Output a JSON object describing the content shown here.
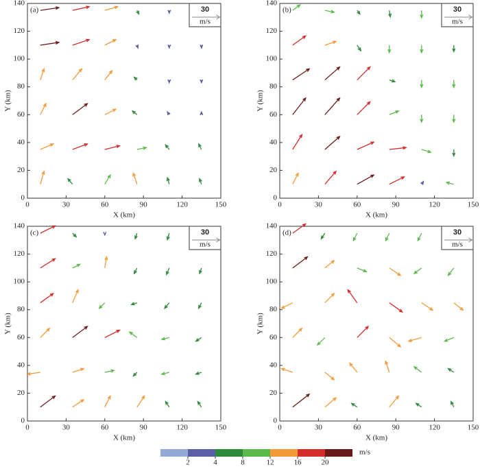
{
  "chart_data": [
    {
      "type": "quiver",
      "panel_label": "(a)",
      "xlabel": "X (km)",
      "ylabel": "Y (km)",
      "xlim": [
        0,
        150
      ],
      "xticks": [
        0,
        30,
        60,
        90,
        120,
        150
      ],
      "ylim": [
        0,
        140
      ],
      "yticks": [
        0,
        20,
        40,
        60,
        80,
        100,
        120,
        140
      ],
      "ref_value": 30,
      "ref_unit": "m/s",
      "grid_x": [
        10,
        35,
        60,
        85,
        110,
        135
      ],
      "grid_y": [
        10,
        35,
        60,
        85,
        110,
        135
      ],
      "u": [
        [
          4,
          -5,
          6,
          -4,
          -2,
          -2
        ],
        [
          14,
          16,
          16,
          10,
          -4,
          -3
        ],
        [
          6,
          16,
          12,
          -5,
          -2,
          0
        ],
        [
          4,
          10,
          8,
          -3,
          0,
          0
        ],
        [
          20,
          18,
          12,
          1,
          0,
          0
        ],
        [
          20,
          18,
          14,
          2,
          0,
          0
        ]
      ],
      "v": [
        [
          14,
          6,
          10,
          12,
          7,
          6
        ],
        [
          6,
          6,
          4,
          2,
          5,
          6
        ],
        [
          12,
          12,
          6,
          4,
          3,
          3
        ],
        [
          12,
          12,
          10,
          3,
          -3,
          -3
        ],
        [
          3,
          6,
          6,
          -3,
          -3,
          -3
        ],
        [
          3,
          4,
          4,
          -4,
          -3,
          -3
        ]
      ]
    },
    {
      "type": "quiver",
      "panel_label": "(b)",
      "xlabel": "X (km)",
      "ylabel": "Y (km)",
      "xlim": [
        0,
        150
      ],
      "xticks": [
        0,
        30,
        60,
        90,
        120,
        150
      ],
      "ylim": [
        0,
        140
      ],
      "yticks": [
        0,
        20,
        40,
        60,
        80,
        100,
        120,
        140
      ],
      "ref_value": 30,
      "ref_unit": "m/s",
      "grid_x": [
        10,
        35,
        60,
        85,
        110,
        135
      ],
      "grid_y": [
        10,
        35,
        60,
        85,
        110,
        135
      ],
      "u": [
        [
          6,
          12,
          18,
          16,
          2,
          -8
        ],
        [
          10,
          16,
          18,
          18,
          10,
          0
        ],
        [
          14,
          16,
          14,
          10,
          0,
          0
        ],
        [
          18,
          16,
          14,
          6,
          0,
          0
        ],
        [
          14,
          12,
          4,
          0,
          0,
          0
        ],
        [
          8,
          10,
          3,
          1,
          0,
          0
        ]
      ],
      "v": [
        [
          12,
          14,
          10,
          8,
          3,
          2
        ],
        [
          16,
          14,
          8,
          2,
          -3,
          -7
        ],
        [
          18,
          18,
          14,
          4,
          -8,
          -8
        ],
        [
          12,
          14,
          14,
          -2,
          -8,
          -8
        ],
        [
          10,
          4,
          -6,
          -8,
          -8,
          -7
        ],
        [
          6,
          -2,
          -4,
          -7,
          -8,
          -6
        ]
      ]
    },
    {
      "type": "quiver",
      "panel_label": "(c)",
      "xlabel": "X (km)",
      "ylabel": "Y (km)",
      "xlim": [
        0,
        150
      ],
      "xticks": [
        0,
        30,
        60,
        90,
        120,
        150
      ],
      "ylim": [
        0,
        140
      ],
      "yticks": [
        0,
        20,
        40,
        60,
        80,
        100,
        120,
        140
      ],
      "ref_value": 30,
      "ref_unit": "m/s",
      "grid_x": [
        10,
        35,
        60,
        85,
        110,
        135
      ],
      "grid_y": [
        10,
        35,
        60,
        85,
        110,
        135
      ],
      "u": [
        [
          16,
          12,
          6,
          8,
          -4,
          -4
        ],
        [
          -14,
          12,
          10,
          -4,
          -8,
          -6
        ],
        [
          10,
          16,
          16,
          -8,
          -8,
          -6
        ],
        [
          14,
          6,
          -6,
          -6,
          -5,
          -3
        ],
        [
          16,
          8,
          2,
          -3,
          -3,
          -2
        ],
        [
          16,
          4,
          0,
          -2,
          -2,
          -2
        ]
      ],
      "v": [
        [
          12,
          8,
          12,
          12,
          6,
          6
        ],
        [
          -2,
          4,
          2,
          -4,
          -2,
          -2
        ],
        [
          10,
          12,
          8,
          6,
          -2,
          -4
        ],
        [
          10,
          14,
          -6,
          -2,
          -6,
          -6
        ],
        [
          10,
          4,
          12,
          -6,
          -7,
          -6
        ],
        [
          8,
          -4,
          -2,
          -6,
          -7,
          -6
        ]
      ]
    },
    {
      "type": "quiver",
      "panel_label": "(d)",
      "xlabel": "X (km)",
      "ylabel": "Y (km)",
      "xlim": [
        0,
        150
      ],
      "xticks": [
        0,
        30,
        60,
        90,
        120,
        150
      ],
      "ylim": [
        0,
        140
      ],
      "yticks": [
        0,
        20,
        40,
        60,
        80,
        100,
        120,
        140
      ],
      "ref_value": 30,
      "ref_unit": "m/s",
      "grid_x": [
        10,
        35,
        60,
        85,
        110,
        135
      ],
      "grid_y": [
        10,
        35,
        60,
        85,
        110,
        135
      ],
      "u": [
        [
          18,
          12,
          -6,
          10,
          -6,
          -3
        ],
        [
          -12,
          10,
          -8,
          -4,
          -8,
          -6
        ],
        [
          10,
          -8,
          12,
          12,
          -14,
          -10
        ],
        [
          -12,
          10,
          -10,
          14,
          12,
          10
        ],
        [
          16,
          10,
          10,
          12,
          -8,
          -6
        ],
        [
          14,
          -4,
          -4,
          -4,
          -4,
          -3
        ]
      ],
      "v": [
        [
          14,
          10,
          4,
          12,
          4,
          6
        ],
        [
          4,
          -8,
          10,
          12,
          6,
          4
        ],
        [
          10,
          -8,
          12,
          -10,
          -4,
          -4
        ],
        [
          -6,
          10,
          14,
          -10,
          -8,
          -8
        ],
        [
          12,
          8,
          -4,
          -8,
          -6,
          -8
        ],
        [
          10,
          -6,
          -8,
          -8,
          -8,
          -7
        ]
      ]
    }
  ],
  "colorbar": {
    "boundaries": [
      2,
      4,
      8,
      12,
      16,
      20
    ],
    "colors": [
      "#93aad6",
      "#5a5ea6",
      "#2f8a3c",
      "#5bb94b",
      "#f39a3a",
      "#d42b2b",
      "#6a1a1a"
    ],
    "unit": "m/s"
  }
}
